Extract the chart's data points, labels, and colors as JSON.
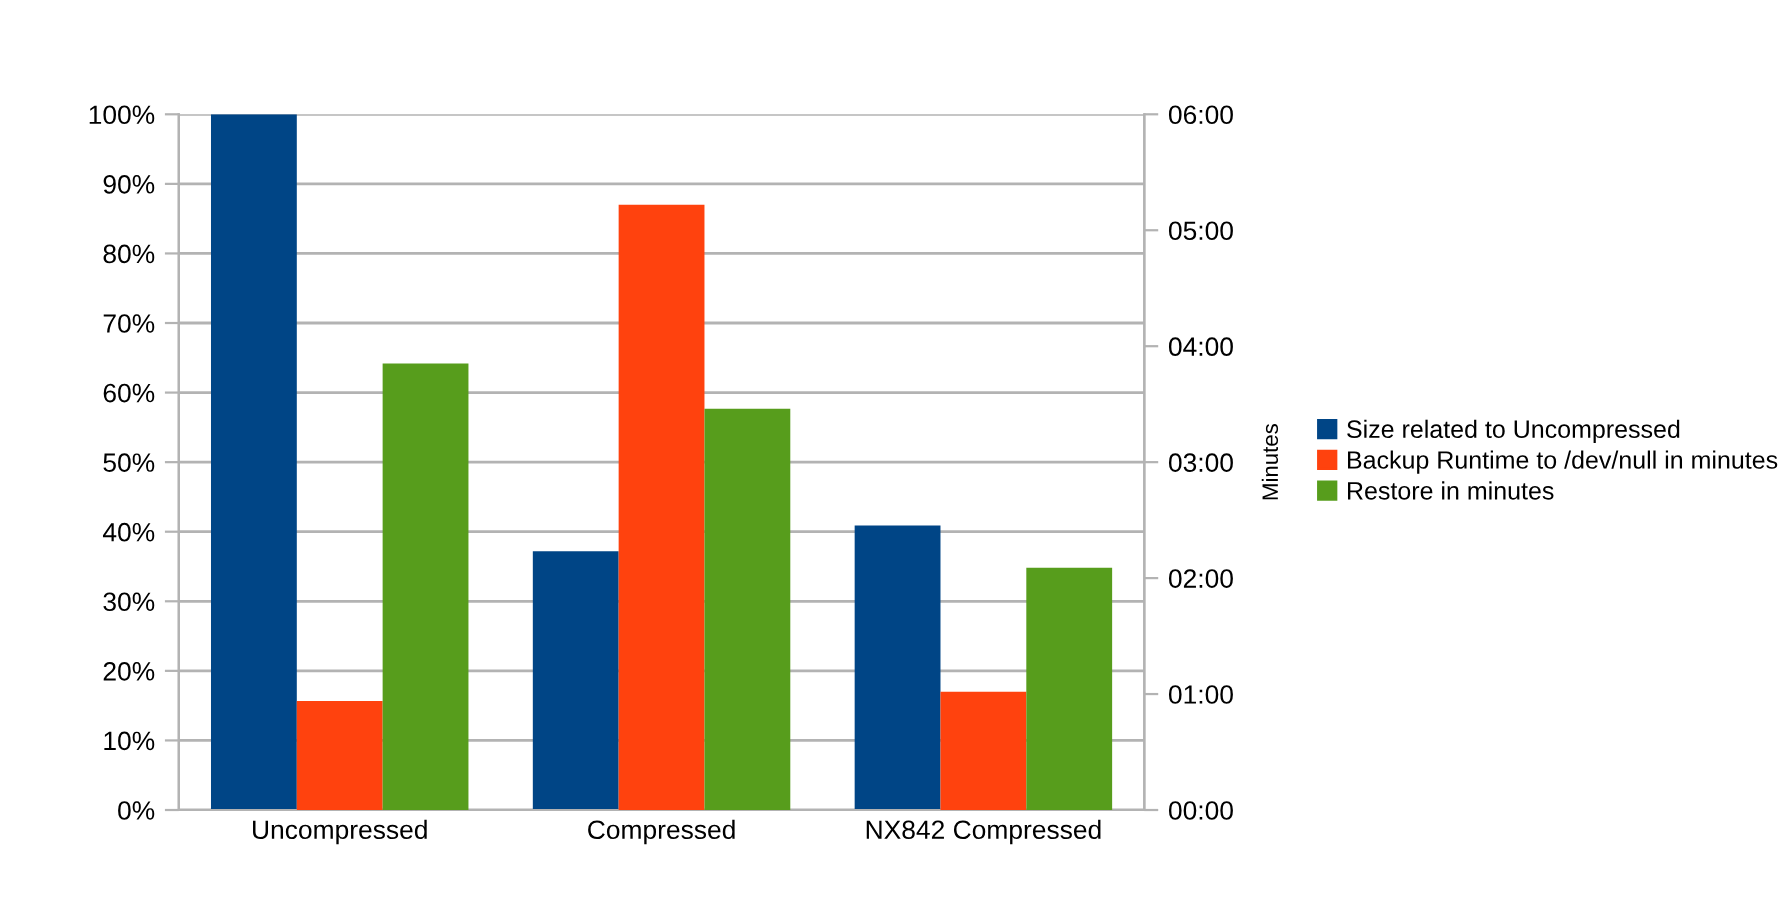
{
  "chart_data": {
    "type": "bar",
    "categories": [
      "Uncompressed",
      "Compressed",
      "NX842 Compressed"
    ],
    "series": [
      {
        "name": "Size related to Uncompressed",
        "color": "#004586",
        "values": [
          100,
          37.2,
          40.9
        ]
      },
      {
        "name": "Backup Runtime to /dev/null in minutes",
        "color": "#ff420e",
        "axis": "y2",
        "values": [
          0.94,
          5.22,
          1.02
        ]
      },
      {
        "name": "Restore in minutes",
        "color": "#579d1c",
        "axis": "y2",
        "values": [
          3.85,
          3.46,
          2.09
        ]
      }
    ],
    "ylim": [
      0,
      100
    ],
    "yticks": [
      {
        "value": 0,
        "label": "0%"
      },
      {
        "value": 10,
        "label": "10%"
      },
      {
        "value": 20,
        "label": "20%"
      },
      {
        "value": 30,
        "label": "30%"
      },
      {
        "value": 40,
        "label": "40%"
      },
      {
        "value": 50,
        "label": "50%"
      },
      {
        "value": 60,
        "label": "60%"
      },
      {
        "value": 70,
        "label": "70%"
      },
      {
        "value": 80,
        "label": "80%"
      },
      {
        "value": 90,
        "label": "90%"
      },
      {
        "value": 100,
        "label": "100%"
      }
    ],
    "y2lim": [
      0,
      6
    ],
    "y2ticks": [
      {
        "value": 0,
        "label": "00:00"
      },
      {
        "value": 1,
        "label": "01:00"
      },
      {
        "value": 2,
        "label": "02:00"
      },
      {
        "value": 3,
        "label": "03:00"
      },
      {
        "value": 4,
        "label": "04:00"
      },
      {
        "value": 5,
        "label": "05:00"
      },
      {
        "value": 6,
        "label": "06:00"
      }
    ],
    "y2label": "Minutes",
    "grid": "y",
    "legend": "right"
  }
}
